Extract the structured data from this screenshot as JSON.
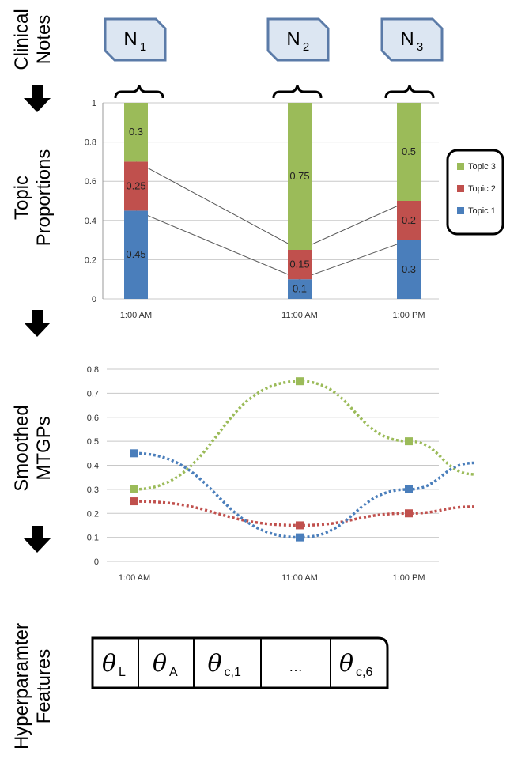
{
  "labels": {
    "clinical": "Clinical",
    "notes": "Notes",
    "topic": "Topic",
    "proportions": "Proportions",
    "smoothed": "Smoothed",
    "mtgps": "MTGPs",
    "hyperparamter": "Hyperparamter",
    "features": "Features"
  },
  "notes": [
    {
      "letter": "N",
      "sub": "1"
    },
    {
      "letter": "N",
      "sub": "2"
    },
    {
      "letter": "N",
      "sub": "3"
    }
  ],
  "colors": {
    "topic1": "#4a7ebb",
    "topic2": "#c0504d",
    "topic3": "#9bbb59",
    "note_fill": "#dce6f2",
    "note_stroke": "#5b7ba8"
  },
  "chart_data": [
    {
      "type": "bar",
      "stacked": true,
      "categories": [
        "1:00 AM",
        "11:00 AM",
        "1:00 PM"
      ],
      "series": [
        {
          "name": "Topic 1",
          "values": [
            0.45,
            0.1,
            0.3
          ],
          "labels": [
            "0.45",
            "0.1",
            "0.3"
          ],
          "color": "#4a7ebb"
        },
        {
          "name": "Topic 2",
          "values": [
            0.25,
            0.15,
            0.2
          ],
          "labels": [
            "0.25",
            "0.15",
            "0.2"
          ],
          "color": "#c0504d"
        },
        {
          "name": "Topic 3",
          "values": [
            0.3,
            0.75,
            0.5
          ],
          "labels": [
            "0.3",
            "0.75",
            "0.5"
          ],
          "color": "#9bbb59"
        }
      ],
      "legend": [
        "Topic 3",
        "Topic 2",
        "Topic 1"
      ],
      "legend_position": "right",
      "ylim": [
        0,
        1
      ],
      "yticks": [
        "0",
        "0.2",
        "0.4",
        "0.6",
        "0.8",
        "1"
      ],
      "grid": true
    },
    {
      "type": "line",
      "style": "dotted smoothed",
      "categories": [
        "1:00 AM",
        "11:00 AM",
        "1:00 PM"
      ],
      "series": [
        {
          "name": "Topic 3",
          "values": [
            0.3,
            0.75,
            0.5
          ],
          "color": "#9bbb59"
        },
        {
          "name": "Topic 2",
          "values": [
            0.25,
            0.15,
            0.2
          ],
          "color": "#c0504d"
        },
        {
          "name": "Topic 1",
          "values": [
            0.45,
            0.1,
            0.3
          ],
          "color": "#4a7ebb"
        }
      ],
      "ylim": [
        0,
        0.8
      ],
      "yticks": [
        "0",
        "0.1",
        "0.2",
        "0.3",
        "0.4",
        "0.5",
        "0.6",
        "0.7",
        "0.8"
      ],
      "grid": true
    }
  ],
  "features": [
    {
      "symbol": "θ",
      "sub": "L"
    },
    {
      "symbol": "θ",
      "sub": "A"
    },
    {
      "symbol": "θ",
      "sub": "c,1"
    },
    {
      "symbol": "",
      "text": "…"
    },
    {
      "symbol": "θ",
      "sub": "c,6"
    }
  ]
}
